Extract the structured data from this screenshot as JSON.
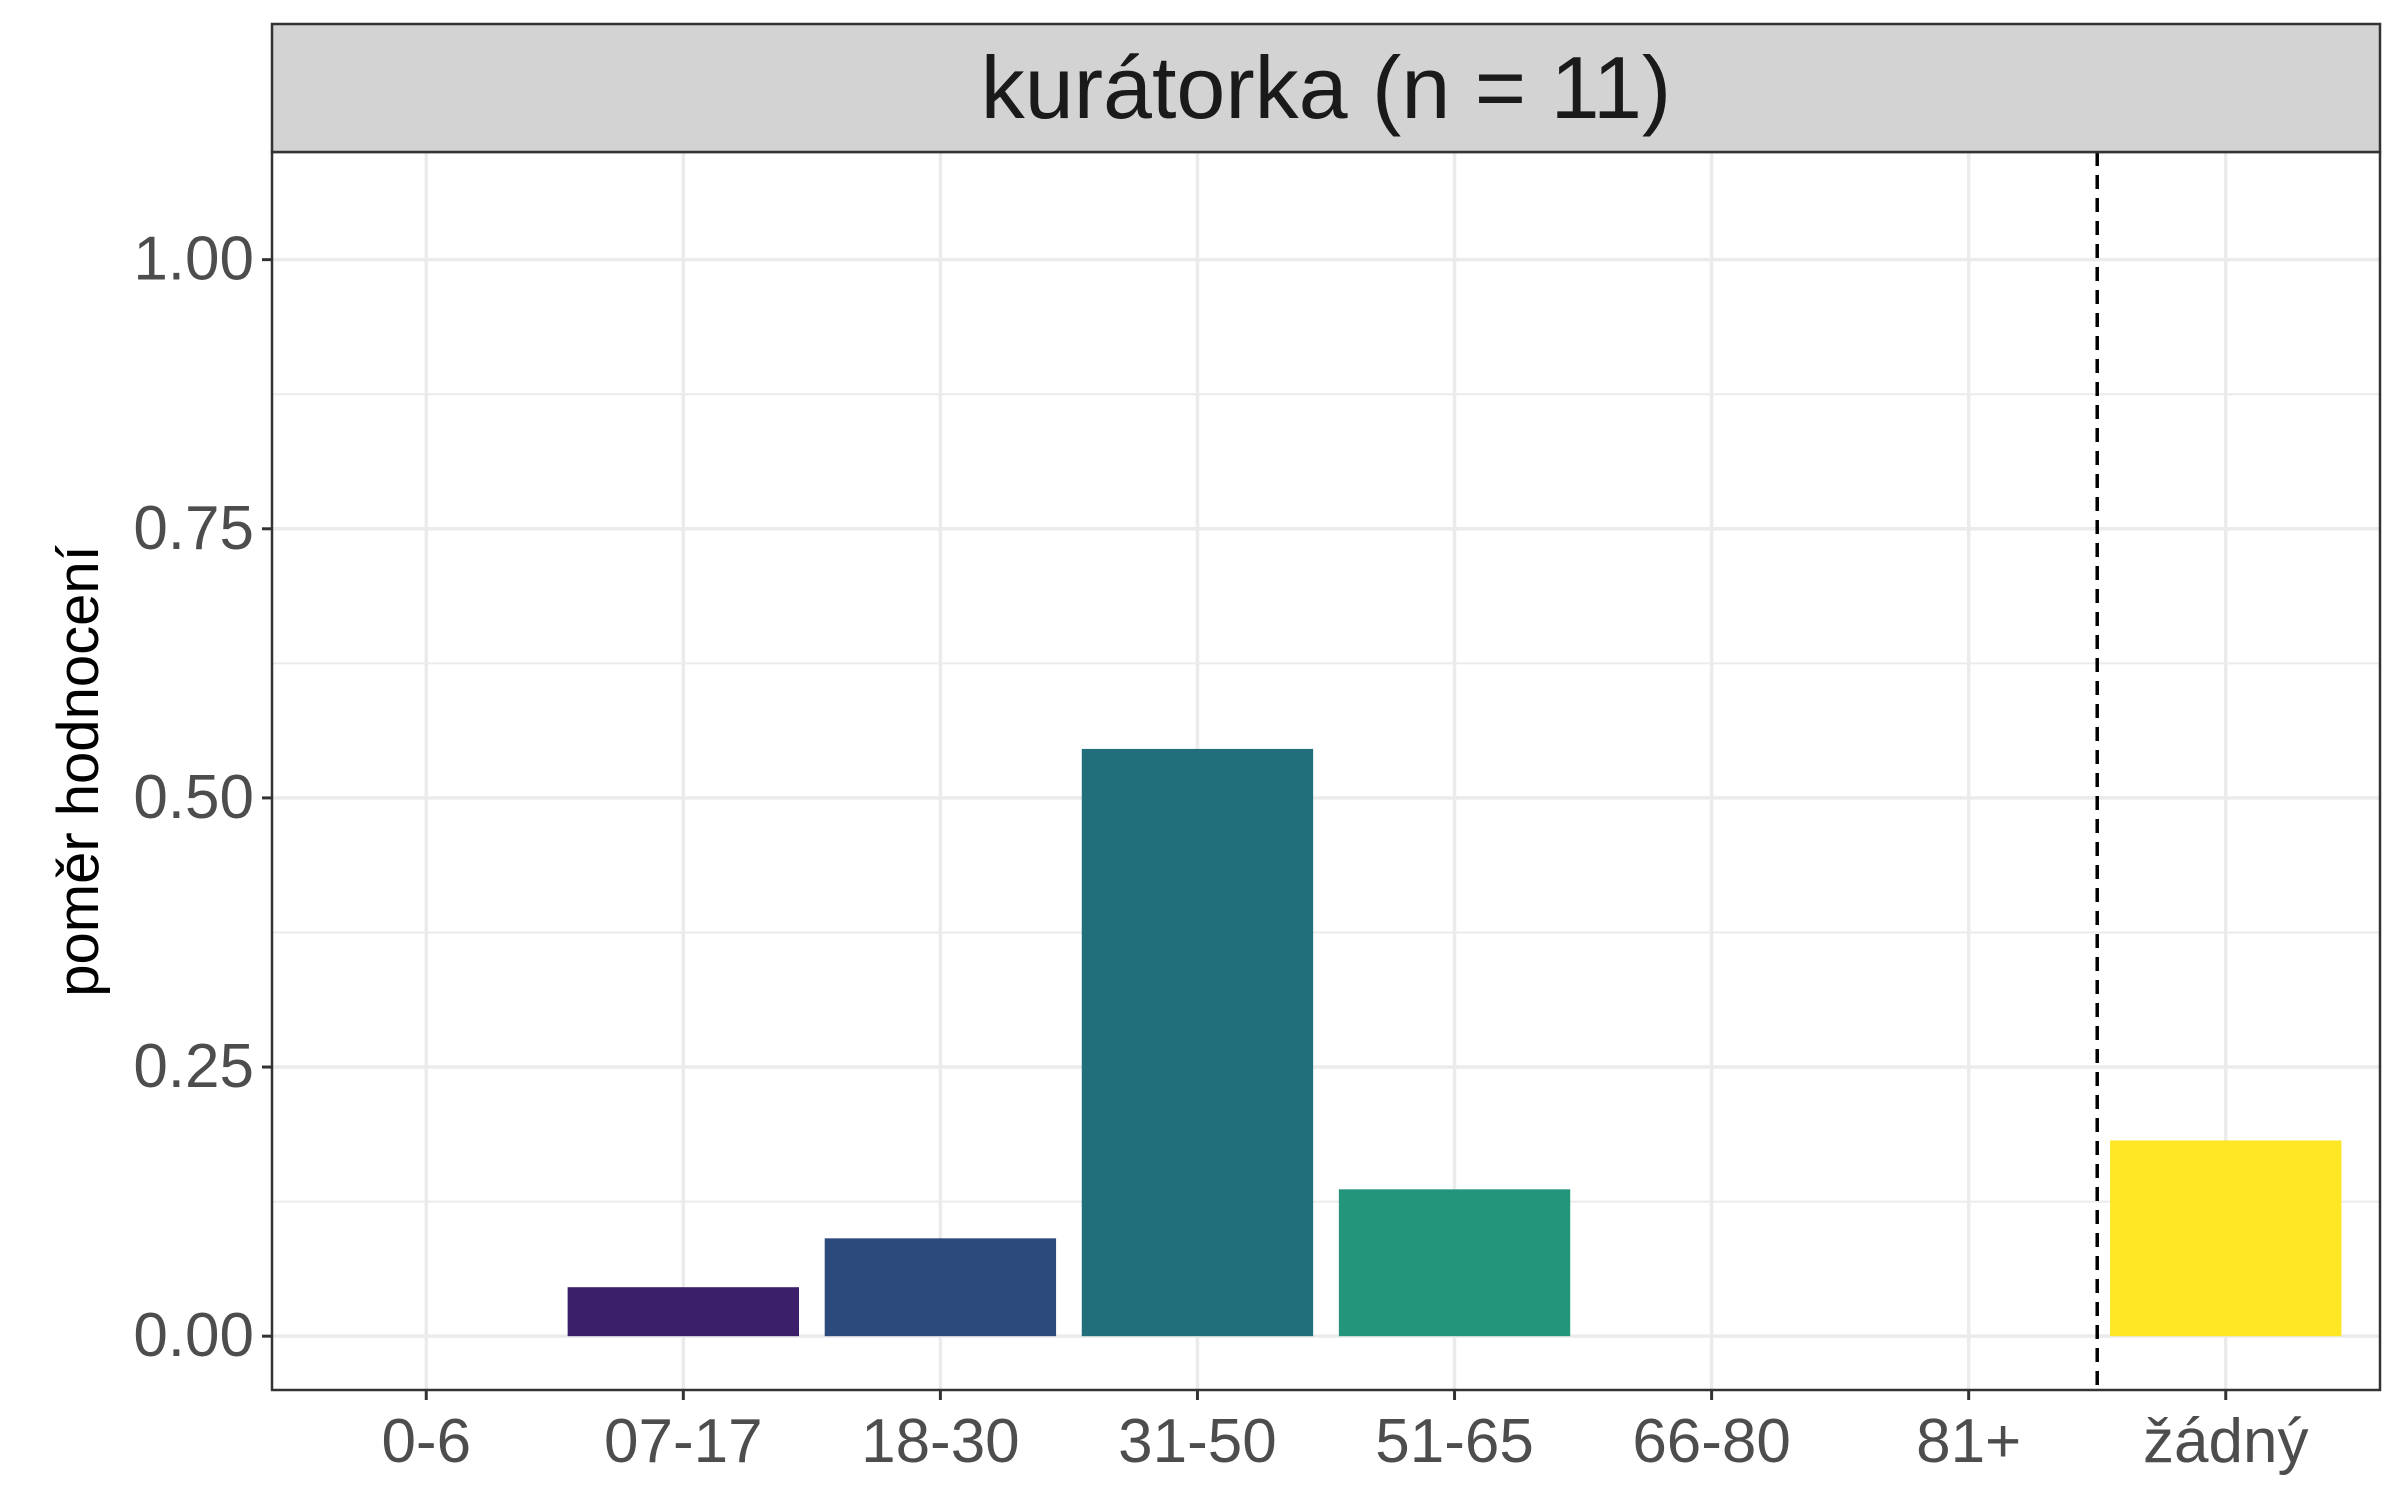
{
  "chart_data": {
    "type": "bar",
    "facet_title": "kurátorka (n = 11)",
    "categories": [
      "0-6",
      "07-17",
      "18-30",
      "31-50",
      "51-65",
      "66-80",
      "81+",
      "žádný"
    ],
    "values": [
      0,
      0.0455,
      0.0909,
      0.5455,
      0.1364,
      0,
      0,
      0.1818
    ],
    "colors": [
      "#440154",
      "#3b1f6b",
      "#2c4a7c",
      "#206f7a",
      "#22957a",
      "#5ec962",
      "#a0da39",
      "#fde725"
    ],
    "xlabel": "",
    "ylabel": "poměr hodnocení",
    "ylim": [
      -0.05,
      1.1
    ],
    "yticks": [
      0,
      0.25,
      0.5,
      0.75,
      1
    ],
    "ytick_labels": [
      "0.00",
      "0.25",
      "0.50",
      "0.75",
      "1.00"
    ],
    "reference_line": {
      "style": "dashed",
      "between": [
        "81+",
        "žádný"
      ]
    },
    "grid": true,
    "legend": "none",
    "strip_color": "#d3d3d3"
  }
}
